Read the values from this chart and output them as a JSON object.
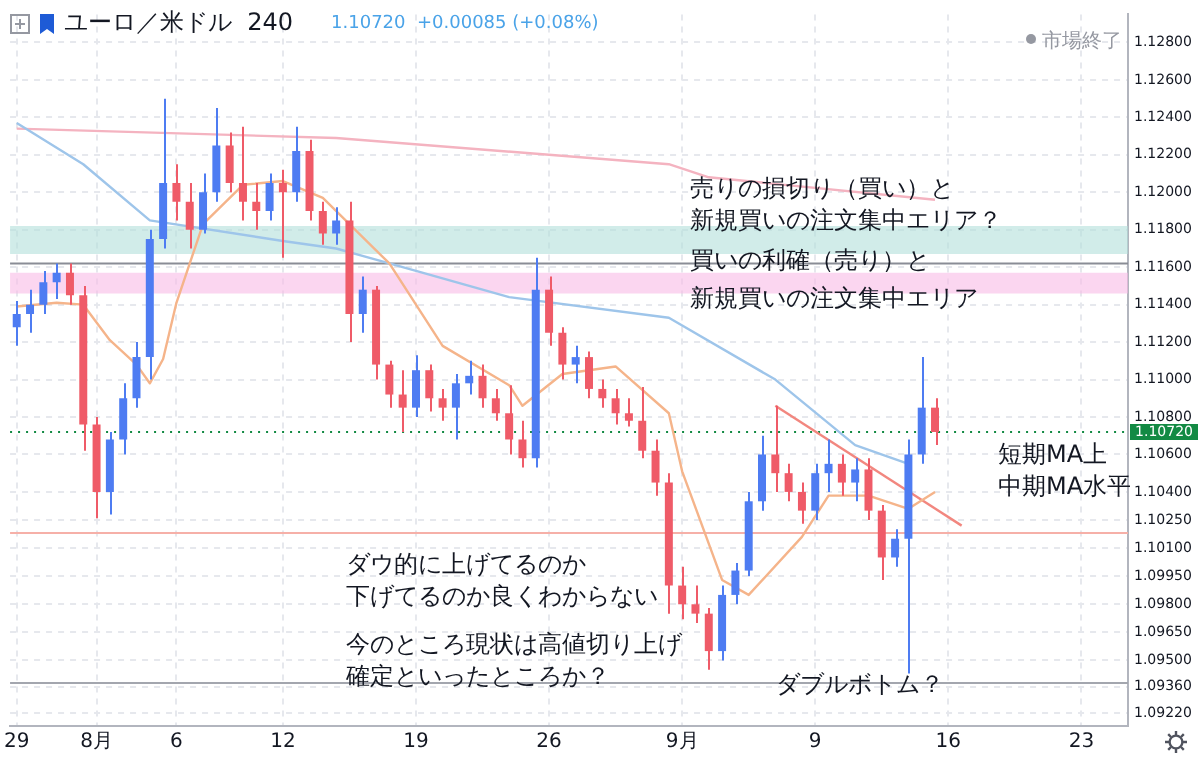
{
  "chart_data": {
    "type": "candlestick",
    "title": "ユーロ／米ドル  240",
    "subtitle": "1.10720  +0.00085 (+0.08%)",
    "categories": [
      "29",
      null,
      null,
      null,
      null,
      null,
      "8月",
      null,
      null,
      null,
      null,
      null,
      "6",
      null,
      null,
      null,
      null,
      null,
      null,
      null,
      "12",
      null,
      null,
      null,
      null,
      null,
      null,
      null,
      null,
      null,
      "19",
      null,
      null,
      null,
      null,
      null,
      null,
      null,
      null,
      null,
      "26",
      null,
      null,
      null,
      null,
      null,
      null,
      null,
      null,
      null,
      "9月",
      null,
      null,
      null,
      null,
      null,
      null,
      null,
      null,
      null,
      "9",
      null,
      null,
      null,
      null,
      null,
      null,
      null,
      null,
      null,
      "16",
      null,
      null,
      null,
      null,
      null,
      null,
      null,
      null,
      null,
      "23",
      null,
      null,
      null
    ],
    "ohlc": [
      [
        1.1128,
        1.1142,
        1.1118,
        1.1135
      ],
      [
        1.1135,
        1.1148,
        1.1125,
        1.114
      ],
      [
        1.114,
        1.1158,
        1.1135,
        1.1152
      ],
      [
        1.1152,
        1.1162,
        1.1143,
        1.1157
      ],
      [
        1.1157,
        1.1162,
        1.114,
        1.1145
      ],
      [
        1.1145,
        1.115,
        1.1062,
        1.1076
      ],
      [
        1.1076,
        1.108,
        1.1026,
        1.104
      ],
      [
        1.104,
        1.1072,
        1.1028,
        1.1068
      ],
      [
        1.1068,
        1.1098,
        1.106,
        1.109
      ],
      [
        1.109,
        1.112,
        1.1085,
        1.1112
      ],
      [
        1.1112,
        1.118,
        1.11,
        1.1175
      ],
      [
        1.1175,
        1.125,
        1.117,
        1.1205
      ],
      [
        1.1205,
        1.1215,
        1.1185,
        1.1195
      ],
      [
        1.1195,
        1.1205,
        1.117,
        1.118
      ],
      [
        1.118,
        1.121,
        1.1178,
        1.12
      ],
      [
        1.12,
        1.1245,
        1.1195,
        1.1225
      ],
      [
        1.1225,
        1.1232,
        1.12,
        1.1205
      ],
      [
        1.1205,
        1.1235,
        1.1185,
        1.1195
      ],
      [
        1.1195,
        1.1205,
        1.118,
        1.119
      ],
      [
        1.119,
        1.121,
        1.1185,
        1.1205
      ],
      [
        1.1205,
        1.1212,
        1.1165,
        1.12
      ],
      [
        1.12,
        1.1235,
        1.1195,
        1.1222
      ],
      [
        1.1222,
        1.1228,
        1.1185,
        1.119
      ],
      [
        1.119,
        1.1195,
        1.1172,
        1.1178
      ],
      [
        1.1178,
        1.1192,
        1.1172,
        1.1185
      ],
      [
        1.1185,
        1.1195,
        1.112,
        1.1135
      ],
      [
        1.1135,
        1.1155,
        1.1125,
        1.1148
      ],
      [
        1.1148,
        1.115,
        1.11,
        1.1108
      ],
      [
        1.1108,
        1.111,
        1.1085,
        1.1092
      ],
      [
        1.1092,
        1.1105,
        1.1072,
        1.1085
      ],
      [
        1.1085,
        1.1113,
        1.108,
        1.1105
      ],
      [
        1.1105,
        1.1108,
        1.1083,
        1.109
      ],
      [
        1.109,
        1.1095,
        1.1078,
        1.1085
      ],
      [
        1.1085,
        1.1103,
        1.1068,
        1.1098
      ],
      [
        1.1098,
        1.111,
        1.1092,
        1.1102
      ],
      [
        1.1102,
        1.1108,
        1.1085,
        1.109
      ],
      [
        1.109,
        1.1095,
        1.1078,
        1.1082
      ],
      [
        1.1082,
        1.1097,
        1.106,
        1.1068
      ],
      [
        1.1068,
        1.1078,
        1.1053,
        1.1058
      ],
      [
        1.1058,
        1.1165,
        1.1053,
        1.1148
      ],
      [
        1.1148,
        1.1155,
        1.1118,
        1.1125
      ],
      [
        1.1125,
        1.1128,
        1.11,
        1.1108
      ],
      [
        1.1108,
        1.1118,
        1.1098,
        1.1112
      ],
      [
        1.1112,
        1.1115,
        1.109,
        1.1095
      ],
      [
        1.1095,
        1.11,
        1.1085,
        1.109
      ],
      [
        1.109,
        1.1095,
        1.1076,
        1.1082
      ],
      [
        1.1082,
        1.109,
        1.1075,
        1.1078
      ],
      [
        1.1078,
        1.1096,
        1.1058,
        1.1062
      ],
      [
        1.1062,
        1.1068,
        1.1038,
        1.1045
      ],
      [
        1.1045,
        1.105,
        1.0975,
        1.099
      ],
      [
        1.099,
        1.1,
        1.0972,
        1.098
      ],
      [
        1.098,
        1.099,
        1.097,
        1.0975
      ],
      [
        1.0975,
        1.0978,
        1.0945,
        1.0955
      ],
      [
        1.0955,
        1.099,
        1.095,
        1.0985
      ],
      [
        1.0985,
        1.1002,
        1.098,
        1.0998
      ],
      [
        1.0998,
        1.104,
        1.0995,
        1.1035
      ],
      [
        1.1035,
        1.107,
        1.103,
        1.106
      ],
      [
        1.106,
        1.1086,
        1.104,
        1.105
      ],
      [
        1.105,
        1.1055,
        1.1035,
        1.104
      ],
      [
        1.104,
        1.1045,
        1.1023,
        1.103
      ],
      [
        1.103,
        1.1055,
        1.1025,
        1.105
      ],
      [
        1.105,
        1.1068,
        1.104,
        1.1055
      ],
      [
        1.1055,
        1.106,
        1.1038,
        1.1045
      ],
      [
        1.1045,
        1.1058,
        1.1035,
        1.1052
      ],
      [
        1.1052,
        1.1058,
        1.1025,
        1.103
      ],
      [
        1.103,
        1.1033,
        1.0993,
        1.1005
      ],
      [
        1.1005,
        1.102,
        1.1,
        1.1015
      ],
      [
        1.1015,
        1.1068,
        1.0943,
        1.106
      ],
      [
        1.106,
        1.1112,
        1.1055,
        1.1085
      ],
      [
        1.1085,
        1.109,
        1.1065,
        1.1072
      ],
      null,
      null,
      null,
      null,
      null,
      null,
      null,
      null,
      null,
      null,
      null,
      null,
      null,
      null
    ],
    "colors": [
      "#4e7cf2",
      "#4e7cf2",
      "#4e7cf2",
      "#4e7cf2",
      "#ef5b68",
      "#ef5b68",
      "#ef5b68",
      "#4e7cf2",
      "#4e7cf2",
      "#4e7cf2",
      "#4e7cf2",
      "#4e7cf2",
      "#ef5b68",
      "#ef5b68",
      "#4e7cf2",
      "#4e7cf2",
      "#ef5b68",
      "#ef5b68",
      "#ef5b68",
      "#4e7cf2",
      "#ef5b68",
      "#4e7cf2",
      "#ef5b68",
      "#ef5b68",
      "#4e7cf2",
      "#ef5b68",
      "#4e7cf2",
      "#ef5b68",
      "#ef5b68",
      "#ef5b68",
      "#4e7cf2",
      "#ef5b68",
      "#ef5b68",
      "#4e7cf2",
      "#4e7cf2",
      "#ef5b68",
      "#ef5b68",
      "#ef5b68",
      "#ef5b68",
      "#4e7cf2",
      "#ef5b68",
      "#ef5b68",
      "#4e7cf2",
      "#ef5b68",
      "#ef5b68",
      "#ef5b68",
      "#ef5b68",
      "#ef5b68",
      "#ef5b68",
      "#ef5b68",
      "#ef5b68",
      "#ef5b68",
      "#ef5b68",
      "#4e7cf2",
      "#4e7cf2",
      "#4e7cf2",
      "#4e7cf2",
      "#ef5b68",
      "#ef5b68",
      "#ef5b68",
      "#4e7cf2",
      "#4e7cf2",
      "#ef5b68",
      "#4e7cf2",
      "#ef5b68",
      "#ef5b68",
      "#4e7cf2",
      "#4e7cf2",
      "#4e7cf2",
      "#ef5b68",
      null,
      null,
      null,
      null,
      null,
      null,
      null,
      null,
      null,
      null,
      null,
      null,
      null,
      null
    ],
    "series": [
      {
        "type": "line",
        "color": "#f5b48a",
        "values": [
          1.1139,
          null,
          null,
          1.1141,
          null,
          1.114,
          null,
          1.1121,
          null,
          1.1108,
          1.1098,
          1.1111,
          1.1141,
          null,
          1.1183,
          null,
          null,
          1.1204,
          null,
          null,
          1.1206,
          null,
          null,
          1.1197,
          null,
          null,
          null,
          null,
          1.1162,
          null,
          null,
          null,
          1.1118,
          null,
          null,
          null,
          null,
          1.1097,
          1.1086,
          null,
          null,
          1.1103,
          null,
          null,
          null,
          1.1107,
          null,
          null,
          null,
          1.1082,
          1.1051,
          null,
          null,
          1.0993,
          null,
          1.0985,
          null,
          null,
          null,
          1.1016,
          null,
          1.1038,
          null,
          null,
          1.1038,
          null,
          null,
          1.1031,
          null,
          1.104,
          null,
          null,
          null,
          null,
          null,
          null,
          null,
          null,
          null,
          null,
          null,
          null,
          null,
          null
        ]
      },
      {
        "type": "line",
        "color": "#9ec5ea",
        "values": [
          1.1237,
          null,
          null,
          null,
          null,
          1.1215,
          null,
          null,
          null,
          null,
          1.1185,
          null,
          null,
          null,
          null,
          null,
          null,
          null,
          null,
          null,
          1.1174,
          null,
          null,
          null,
          1.117,
          null,
          null,
          null,
          1.1162,
          null,
          null,
          null,
          null,
          null,
          null,
          null,
          null,
          1.1144,
          null,
          null,
          null,
          null,
          null,
          null,
          null,
          null,
          null,
          null,
          null,
          1.1133,
          null,
          null,
          null,
          null,
          null,
          null,
          null,
          1.11,
          null,
          null,
          null,
          null,
          null,
          1.1065,
          null,
          null,
          null,
          1.1055,
          null,
          null,
          null,
          null,
          null,
          null,
          null,
          null,
          null,
          null,
          null,
          null,
          null,
          null,
          null,
          null
        ]
      },
      {
        "type": "line",
        "color": "#f4b3c0",
        "values": [
          1.1234,
          null,
          null,
          null,
          null,
          null,
          null,
          null,
          null,
          null,
          null,
          null,
          null,
          null,
          null,
          null,
          null,
          null,
          null,
          null,
          null,
          null,
          null,
          null,
          1.1229,
          null,
          null,
          null,
          null,
          null,
          null,
          null,
          null,
          null,
          null,
          null,
          null,
          null,
          null,
          null,
          null,
          null,
          null,
          null,
          null,
          null,
          null,
          null,
          null,
          1.1215,
          null,
          null,
          1.1208,
          null,
          null,
          null,
          null,
          null,
          null,
          null,
          null,
          null,
          null,
          null,
          null,
          null,
          null,
          null,
          null,
          1.1196,
          null,
          null,
          null,
          null,
          null,
          null,
          null,
          null,
          null,
          null,
          null,
          null,
          null,
          null
        ]
      },
      {
        "type": "line",
        "color": "#f2877f",
        "values": [
          null,
          null,
          null,
          null,
          null,
          null,
          null,
          null,
          null,
          null,
          null,
          null,
          null,
          null,
          null,
          null,
          null,
          null,
          null,
          null,
          null,
          null,
          null,
          null,
          null,
          null,
          null,
          null,
          null,
          null,
          null,
          null,
          null,
          null,
          null,
          null,
          null,
          null,
          null,
          null,
          null,
          null,
          null,
          null,
          null,
          null,
          null,
          null,
          null,
          null,
          null,
          null,
          null,
          null,
          null,
          null,
          null,
          1.1086,
          null,
          null,
          null,
          null,
          null,
          null,
          null,
          null,
          null,
          null,
          null,
          null,
          null,
          1.1022,
          null,
          null,
          null,
          null,
          null,
          null,
          null,
          null,
          null,
          null,
          null,
          null
        ]
      }
    ],
    "ylim": [
      1.0915,
      1.1295
    ],
    "yticks": [
      {
        "value": 1.0922,
        "label": "1.09220"
      },
      {
        "value": 1.0936,
        "label": "1.09360"
      },
      {
        "value": 1.095,
        "label": "1.09500"
      },
      {
        "value": 1.0965,
        "label": "1.09650"
      },
      {
        "value": 1.098,
        "label": "1.09800"
      },
      {
        "value": 1.0995,
        "label": "1.09950"
      },
      {
        "value": 1.101,
        "label": "1.10100"
      },
      {
        "value": 1.1025,
        "label": "1.10250"
      },
      {
        "value": 1.104,
        "label": "1.10400"
      },
      {
        "value": 1.106,
        "label": "1.10600"
      },
      {
        "value": 1.108,
        "label": "1.10800"
      },
      {
        "value": 1.11,
        "label": "1.11000"
      },
      {
        "value": 1.112,
        "label": "1.11200"
      },
      {
        "value": 1.114,
        "label": "1.11400"
      },
      {
        "value": 1.116,
        "label": "1.11600"
      },
      {
        "value": 1.118,
        "label": "1.11800"
      },
      {
        "value": 1.12,
        "label": "1.12000"
      },
      {
        "value": 1.122,
        "label": "1.12200"
      },
      {
        "value": 1.124,
        "label": "1.12400"
      },
      {
        "value": 1.126,
        "label": "1.12600"
      },
      {
        "value": 1.128,
        "label": "1.12800"
      }
    ],
    "ref_lines": [
      {
        "axis": "y",
        "value": 1.1162,
        "color": "#8a8d96"
      },
      {
        "axis": "y",
        "value": 1.1018,
        "color": "#f6b0a8"
      },
      {
        "axis": "y",
        "value": 1.0938,
        "color": "#a3a6ae"
      },
      {
        "axis": "y",
        "value": 1.1072,
        "label": "1.10720",
        "color": "#138a44",
        "line_style": "dotted"
      }
    ],
    "bands": [
      {
        "axis": "y",
        "from": 1.1167,
        "to": 1.1182,
        "color": "#b2dfdb"
      },
      {
        "axis": "y",
        "from": 1.1146,
        "to": 1.1157,
        "color": "#f8bbe6"
      }
    ],
    "annotations": [
      "市場終了",
      "売りの損切り（買い）と",
      "新規買いの注文集中エリア？",
      "買いの利確（売り）と",
      "新規買いの注文集中エリア",
      "ダウ的に上げてるのか",
      "下げてるのか良くわからない",
      "今のところ現状は高値切り上げ",
      "確定といったところか？",
      "ダブルボトム？",
      "短期MA上",
      "中期MA水平"
    ],
    "grid": true,
    "legend": false,
    "marker": "none"
  }
}
